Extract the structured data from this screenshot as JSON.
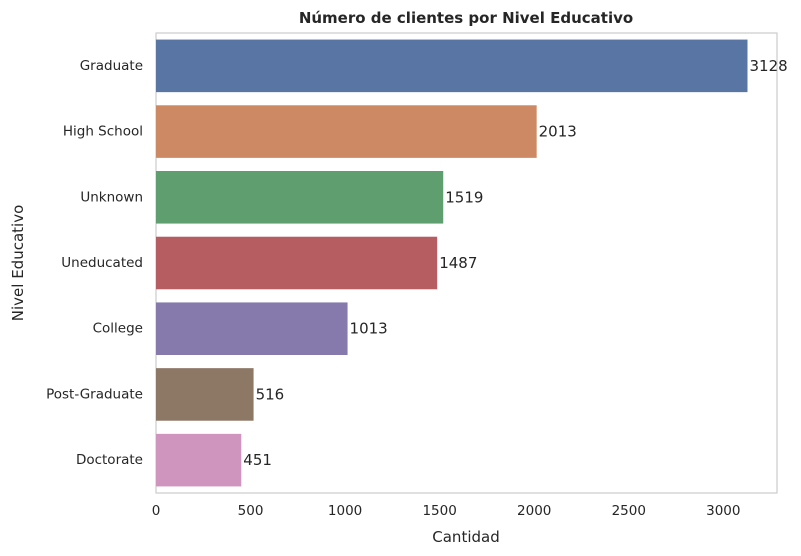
{
  "chart_data": {
    "type": "bar",
    "orientation": "horizontal",
    "title": "Número de clientes por Nivel Educativo",
    "xlabel": "Cantidad",
    "ylabel": "Nivel Educativo",
    "categories": [
      "Graduate",
      "High School",
      "Unknown",
      "Uneducated",
      "College",
      "Post-Graduate",
      "Doctorate"
    ],
    "values": [
      3128,
      2013,
      1519,
      1487,
      1013,
      516,
      451
    ],
    "data_labels": [
      "3128",
      "2013",
      "1519",
      "1487",
      "1013",
      "516",
      "451"
    ],
    "colors": [
      "#5875a4",
      "#cc8963",
      "#5f9e6e",
      "#b55d60",
      "#857aab",
      "#8d7866",
      "#d095bf"
    ],
    "xlim": [
      0,
      3284
    ],
    "xticks": [
      0,
      500,
      1000,
      1500,
      2000,
      2500,
      3000
    ],
    "xtick_labels": [
      "0",
      "500",
      "1000",
      "1500",
      "2000",
      "2500",
      "3000"
    ],
    "grid": false,
    "legend": "none"
  }
}
